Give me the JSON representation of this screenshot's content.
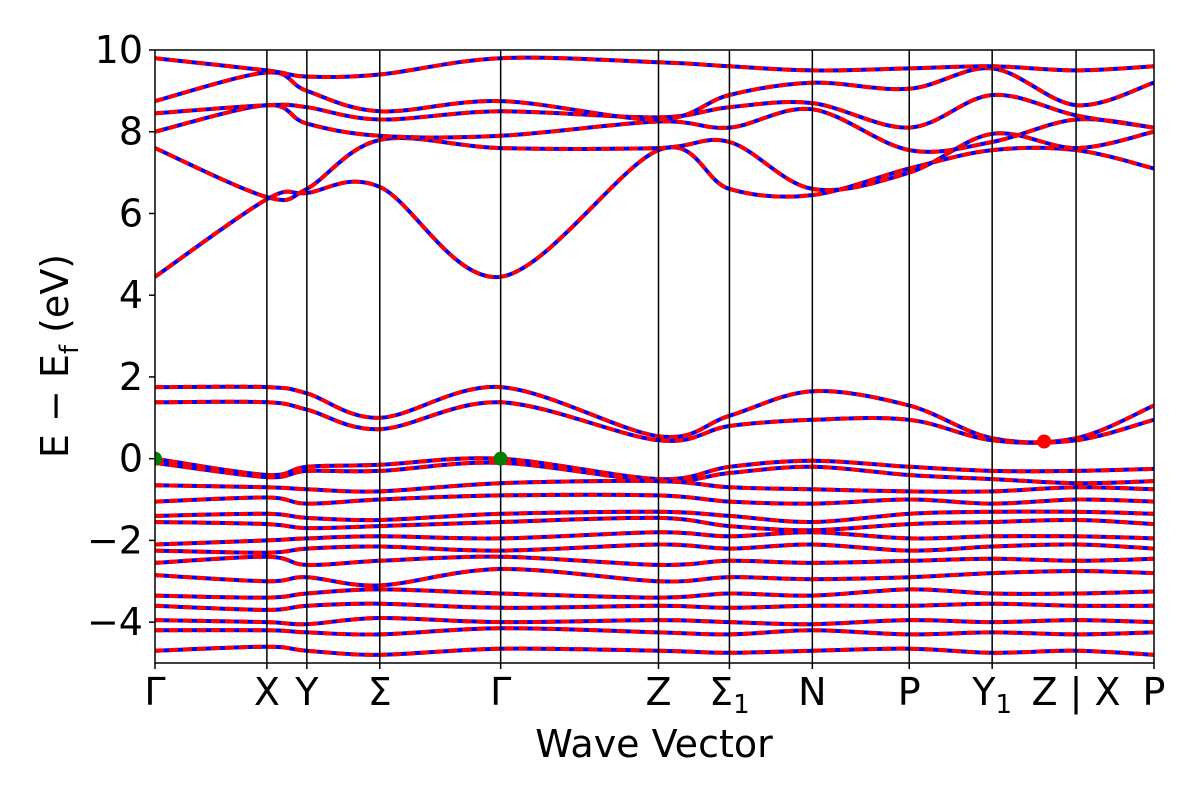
{
  "chart_data": {
    "type": "line",
    "title": "",
    "xlabel": "Wave Vector",
    "ylabel": "E − E",
    "ylabel_sub": "f",
    "ylabel_unit": " (eV)",
    "ylim": [
      -5,
      10
    ],
    "y_ticks": [
      {
        "value": -4,
        "label": "−4"
      },
      {
        "value": -2,
        "label": "−2"
      },
      {
        "value": 0,
        "label": "0"
      },
      {
        "value": 2,
        "label": "2"
      },
      {
        "value": 4,
        "label": "4"
      },
      {
        "value": 6,
        "label": "6"
      },
      {
        "value": 8,
        "label": "8"
      },
      {
        "value": 10,
        "label": "10"
      }
    ],
    "kpath_range": [
      0,
      10
    ],
    "high_symmetry_points": [
      {
        "k": 0.0,
        "label": "Γ",
        "sub": ""
      },
      {
        "k": 1.12,
        "label": "X",
        "sub": ""
      },
      {
        "k": 1.52,
        "label": "Y",
        "sub": ""
      },
      {
        "k": 2.25,
        "label": "Σ",
        "sub": ""
      },
      {
        "k": 3.46,
        "label": "Γ",
        "sub": ""
      },
      {
        "k": 5.04,
        "label": "Z",
        "sub": ""
      },
      {
        "k": 5.75,
        "label": "Σ",
        "sub": "1"
      },
      {
        "k": 6.58,
        "label": "N",
        "sub": ""
      },
      {
        "k": 7.55,
        "label": "P",
        "sub": ""
      },
      {
        "k": 8.38,
        "label": "Y",
        "sub": "1"
      },
      {
        "k": 9.22,
        "label": "Z | X",
        "sub": ""
      },
      {
        "k": 10.0,
        "label": "P",
        "sub": ""
      }
    ],
    "series_colors": {
      "spin_up": "#0000ff",
      "spin_down": "#ff0000"
    },
    "vbm_marker": {
      "color": "#008000",
      "points": [
        [
          0.0,
          0.0
        ],
        [
          3.46,
          0.0
        ]
      ]
    },
    "cbm_marker": {
      "color": "#ff0000",
      "points": [
        [
          8.9,
          0.42
        ]
      ]
    },
    "bands": [
      {
        "k": [
          0,
          1.12,
          1.52,
          2.25,
          3.46,
          5.04,
          5.75,
          6.58,
          7.55,
          8.38,
          9.22,
          10
        ],
        "e": [
          1.75,
          1.75,
          1.6,
          1.0,
          1.75,
          0.55,
          1.05,
          1.65,
          1.3,
          0.5,
          0.5,
          1.3
        ]
      },
      {
        "k": [
          0,
          1.12,
          1.52,
          2.25,
          3.46,
          5.04,
          5.75,
          6.58,
          7.55,
          8.38,
          9.22,
          10
        ],
        "e": [
          1.38,
          1.38,
          1.2,
          0.72,
          1.38,
          0.45,
          0.8,
          0.95,
          0.95,
          0.45,
          0.45,
          0.95
        ]
      },
      {
        "k": [
          0,
          1.12,
          1.52,
          2.25,
          3.46,
          5.04,
          5.75,
          6.58,
          7.55,
          8.38,
          9.22,
          10
        ],
        "e": [
          0.0,
          -0.4,
          -0.2,
          -0.15,
          0.0,
          -0.5,
          -0.2,
          -0.05,
          -0.2,
          -0.3,
          -0.3,
          -0.25
        ]
      },
      {
        "k": [
          0,
          1.12,
          1.52,
          2.25,
          3.46,
          5.04,
          5.75,
          6.58,
          7.55,
          8.38,
          9.22,
          10
        ],
        "e": [
          -0.1,
          -0.45,
          -0.3,
          -0.3,
          -0.1,
          -0.55,
          -0.35,
          -0.2,
          -0.4,
          -0.5,
          -0.6,
          -0.55
        ]
      },
      {
        "k": [
          0,
          1.12,
          1.52,
          2.25,
          3.46,
          5.04,
          5.75,
          6.58,
          7.55,
          8.38,
          9.22,
          10
        ],
        "e": [
          -0.65,
          -0.7,
          -0.75,
          -0.8,
          -0.6,
          -0.55,
          -0.7,
          -0.75,
          -0.8,
          -0.8,
          -0.7,
          -0.75
        ]
      },
      {
        "k": [
          0,
          1.12,
          1.52,
          2.25,
          3.46,
          5.04,
          5.75,
          6.58,
          7.55,
          8.38,
          9.22,
          10
        ],
        "e": [
          -1.05,
          -0.95,
          -1.1,
          -1.0,
          -0.9,
          -0.9,
          -1.05,
          -1.1,
          -1.0,
          -1.1,
          -1.0,
          -1.05
        ]
      },
      {
        "k": [
          0,
          1.12,
          1.52,
          2.25,
          3.46,
          5.04,
          5.75,
          6.58,
          7.55,
          8.38,
          9.22,
          10
        ],
        "e": [
          -1.4,
          -1.35,
          -1.45,
          -1.5,
          -1.35,
          -1.3,
          -1.4,
          -1.55,
          -1.35,
          -1.3,
          -1.3,
          -1.35
        ]
      },
      {
        "k": [
          0,
          1.12,
          1.52,
          2.25,
          3.46,
          5.04,
          5.75,
          6.58,
          7.55,
          8.38,
          9.22,
          10
        ],
        "e": [
          -1.55,
          -1.6,
          -1.7,
          -1.65,
          -1.55,
          -1.45,
          -1.65,
          -1.75,
          -1.6,
          -1.55,
          -1.5,
          -1.6
        ]
      },
      {
        "k": [
          0,
          1.12,
          1.52,
          2.25,
          3.46,
          5.04,
          5.75,
          6.58,
          7.55,
          8.38,
          9.22,
          10
        ],
        "e": [
          -2.1,
          -2.0,
          -1.95,
          -1.9,
          -1.95,
          -1.8,
          -1.9,
          -1.8,
          -1.95,
          -1.9,
          -1.9,
          -1.95
        ]
      },
      {
        "k": [
          0,
          1.12,
          1.52,
          2.25,
          3.46,
          5.04,
          5.75,
          6.58,
          7.55,
          8.38,
          9.22,
          10
        ],
        "e": [
          -2.25,
          -2.3,
          -2.2,
          -2.15,
          -2.25,
          -2.1,
          -2.2,
          -2.1,
          -2.25,
          -2.15,
          -2.1,
          -2.2
        ]
      },
      {
        "k": [
          0,
          1.12,
          1.52,
          2.25,
          3.46,
          5.04,
          5.75,
          6.58,
          7.55,
          8.38,
          9.22,
          10
        ],
        "e": [
          -2.55,
          -2.4,
          -2.6,
          -2.5,
          -2.4,
          -2.6,
          -2.5,
          -2.55,
          -2.5,
          -2.45,
          -2.5,
          -2.45
        ]
      },
      {
        "k": [
          0,
          1.12,
          1.52,
          2.25,
          3.46,
          5.04,
          5.75,
          6.58,
          7.55,
          8.38,
          9.22,
          10
        ],
        "e": [
          -2.85,
          -3.0,
          -2.9,
          -3.1,
          -2.7,
          -3.0,
          -2.9,
          -2.95,
          -2.9,
          -2.8,
          -2.75,
          -2.8
        ]
      },
      {
        "k": [
          0,
          1.12,
          1.52,
          2.25,
          3.46,
          5.04,
          5.75,
          6.58,
          7.55,
          8.38,
          9.22,
          10
        ],
        "e": [
          -3.35,
          -3.4,
          -3.3,
          -3.2,
          -3.3,
          -3.4,
          -3.3,
          -3.35,
          -3.2,
          -3.3,
          -3.3,
          -3.25
        ]
      },
      {
        "k": [
          0,
          1.12,
          1.52,
          2.25,
          3.46,
          5.04,
          5.75,
          6.58,
          7.55,
          8.38,
          9.22,
          10
        ],
        "e": [
          -3.6,
          -3.7,
          -3.6,
          -3.55,
          -3.65,
          -3.6,
          -3.65,
          -3.6,
          -3.6,
          -3.55,
          -3.6,
          -3.6
        ]
      },
      {
        "k": [
          0,
          1.12,
          1.52,
          2.25,
          3.46,
          5.04,
          5.75,
          6.58,
          7.55,
          8.38,
          9.22,
          10
        ],
        "e": [
          -3.95,
          -4.0,
          -4.05,
          -3.9,
          -4.0,
          -3.95,
          -4.0,
          -4.05,
          -3.95,
          -4.0,
          -3.95,
          -4.0
        ]
      },
      {
        "k": [
          0,
          1.12,
          1.52,
          2.25,
          3.46,
          5.04,
          5.75,
          6.58,
          7.55,
          8.38,
          9.22,
          10
        ],
        "e": [
          -4.2,
          -4.2,
          -4.25,
          -4.3,
          -4.15,
          -4.25,
          -4.3,
          -4.2,
          -4.3,
          -4.25,
          -4.3,
          -4.25
        ]
      },
      {
        "k": [
          0,
          1.12,
          1.52,
          2.25,
          3.46,
          5.04,
          5.75,
          6.58,
          7.55,
          8.38,
          9.22,
          10
        ],
        "e": [
          -4.7,
          -4.6,
          -4.7,
          -4.8,
          -4.65,
          -4.7,
          -4.75,
          -4.7,
          -4.65,
          -4.75,
          -4.7,
          -4.8
        ]
      },
      {
        "k": [
          0,
          1.12,
          1.52,
          2.25,
          3.46,
          5.04,
          5.75,
          6.58,
          7.55,
          8.38,
          9.22,
          10
        ],
        "e": [
          4.45,
          6.35,
          6.5,
          6.65,
          4.45,
          7.55,
          6.6,
          6.45,
          7.1,
          7.55,
          7.55,
          7.1
        ]
      },
      {
        "k": [
          0,
          1.12,
          1.52,
          2.25,
          3.46,
          5.04,
          5.75,
          6.58,
          7.55,
          8.38,
          9.22,
          10
        ],
        "e": [
          7.6,
          6.4,
          6.6,
          7.8,
          7.6,
          7.6,
          7.75,
          6.6,
          7.0,
          7.95,
          7.6,
          8.0
        ]
      },
      {
        "k": [
          0,
          1.12,
          1.52,
          2.25,
          3.46,
          5.04,
          5.75,
          6.58,
          7.55,
          8.38,
          9.22,
          10
        ],
        "e": [
          8.0,
          8.65,
          8.2,
          7.9,
          7.9,
          8.25,
          8.1,
          8.55,
          7.55,
          7.75,
          8.3,
          8.1
        ]
      },
      {
        "k": [
          0,
          1.12,
          1.52,
          2.25,
          3.46,
          5.04,
          5.75,
          6.58,
          7.55,
          8.38,
          9.22,
          10
        ],
        "e": [
          8.45,
          8.65,
          8.6,
          8.3,
          8.5,
          8.35,
          8.6,
          8.7,
          8.1,
          8.9,
          8.4,
          8.1
        ]
      },
      {
        "k": [
          0,
          1.12,
          1.52,
          2.25,
          3.46,
          5.04,
          5.75,
          6.58,
          7.55,
          8.38,
          9.22,
          10
        ],
        "e": [
          8.75,
          9.45,
          9.0,
          8.5,
          8.75,
          8.3,
          8.9,
          9.2,
          9.05,
          9.55,
          8.65,
          9.2
        ]
      },
      {
        "k": [
          0,
          1.12,
          1.52,
          2.25,
          3.46,
          5.04,
          5.75,
          6.58,
          7.55,
          8.38,
          9.22,
          10
        ],
        "e": [
          9.8,
          9.5,
          9.35,
          9.4,
          9.8,
          9.7,
          9.6,
          9.5,
          9.55,
          9.6,
          9.5,
          9.6
        ]
      }
    ]
  }
}
